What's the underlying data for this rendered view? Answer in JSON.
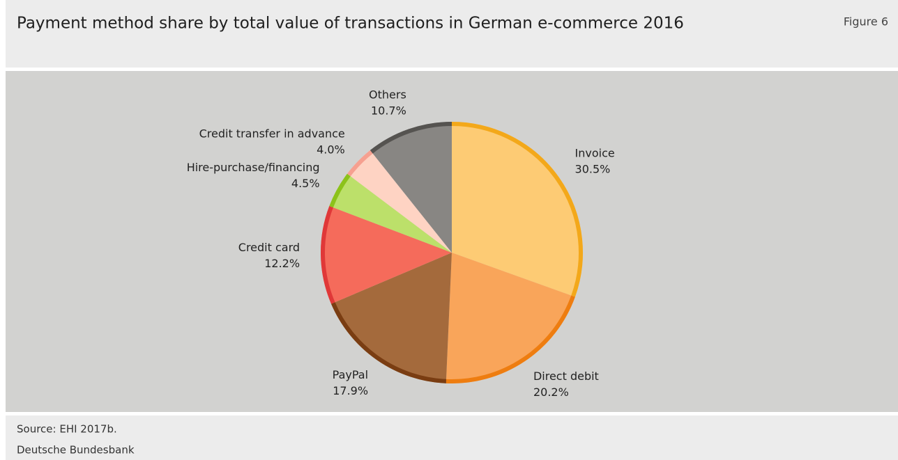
{
  "chart_data": {
    "type": "pie",
    "title": "Payment method share by total value of transactions in German e-commerce 2016",
    "figure_label": "Figure 6",
    "categories": [
      "Invoice",
      "Direct debit",
      "PayPal",
      "Credit card",
      "Hire-purchase/financing",
      "Credit transfer in advance",
      "Others"
    ],
    "values": [
      30.5,
      20.2,
      17.9,
      12.2,
      4.5,
      4.0,
      10.7
    ],
    "value_labels": [
      "30.5%",
      "20.2%",
      "17.9%",
      "12.2%",
      "4.5%",
      "4.0%",
      "10.7%"
    ],
    "colors": [
      "#fdcb74",
      "#f9a55a",
      "#a46a3c",
      "#f56b5b",
      "#bce06a",
      "#fed3c3",
      "#888683"
    ],
    "edge_colors": [
      "#f3a81a",
      "#ee7d10",
      "#7a3d12",
      "#e03838",
      "#8cc21a",
      "#f6a090",
      "#555350"
    ],
    "source": "Source: EHI 2017b.",
    "publisher": "Deutsche Bundesbank"
  }
}
